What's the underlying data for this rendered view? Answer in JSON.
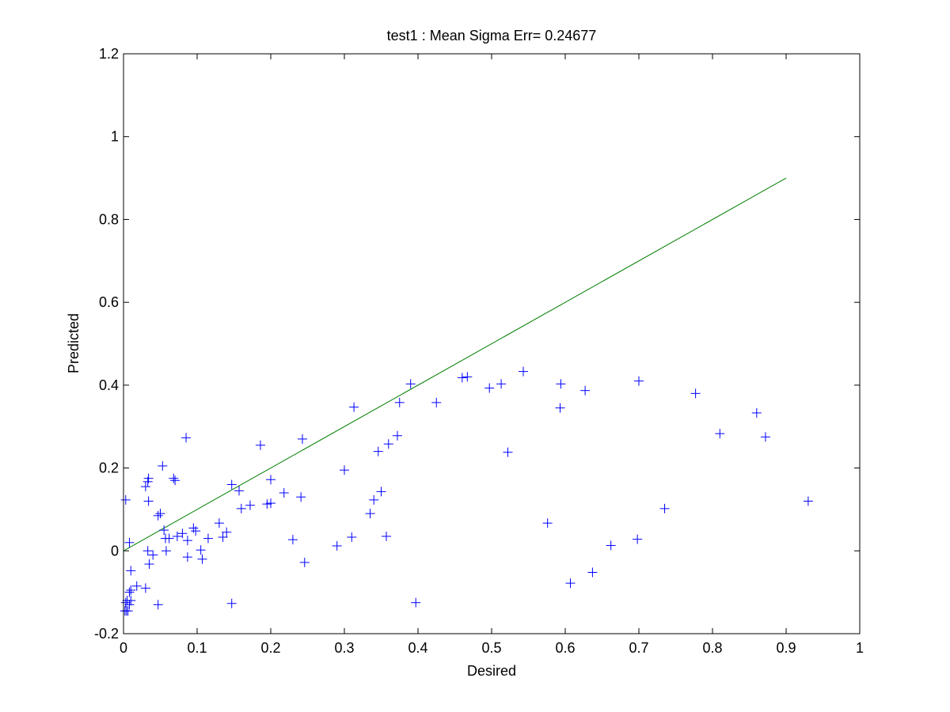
{
  "chart_data": {
    "type": "scatter",
    "title": "test1 :  Mean Sigma Err= 0.24677",
    "xlabel": "Desired",
    "ylabel": "Predicted",
    "xlim": [
      0,
      1
    ],
    "ylim": [
      -0.2,
      1.2
    ],
    "xticks": [
      "0",
      "0.1",
      "0.2",
      "0.3",
      "0.4",
      "0.5",
      "0.6",
      "0.7",
      "0.8",
      "0.9",
      "1"
    ],
    "yticks": [
      "-0.2",
      "0",
      "0.2",
      "0.4",
      "0.6",
      "0.8",
      "1",
      "1.2"
    ],
    "grid": false,
    "series": [
      {
        "type": "scatter",
        "marker": "+",
        "color": "#0000ff",
        "points": [
          [
            0.002,
            -0.145
          ],
          [
            0.004,
            -0.145
          ],
          [
            0.006,
            -0.145
          ],
          [
            0.003,
            -0.125
          ],
          [
            0.005,
            -0.12
          ],
          [
            0.008,
            -0.13
          ],
          [
            0.01,
            -0.12
          ],
          [
            0.008,
            -0.1
          ],
          [
            0.01,
            -0.095
          ],
          [
            0.018,
            -0.085
          ],
          [
            0.03,
            -0.09
          ],
          [
            0.047,
            -0.13
          ],
          [
            0.01,
            -0.048
          ],
          [
            0.003,
            0.123
          ],
          [
            0.008,
            0.02
          ],
          [
            0.03,
            0.155
          ],
          [
            0.033,
            0.167
          ],
          [
            0.034,
            0.175
          ],
          [
            0.034,
            0.12
          ],
          [
            0.033,
            0.0
          ],
          [
            0.035,
            -0.032
          ],
          [
            0.04,
            -0.01
          ],
          [
            0.047,
            0.085
          ],
          [
            0.05,
            0.09
          ],
          [
            0.053,
            0.205
          ],
          [
            0.055,
            0.05
          ],
          [
            0.057,
            0.03
          ],
          [
            0.058,
            0.0
          ],
          [
            0.062,
            0.03
          ],
          [
            0.068,
            0.175
          ],
          [
            0.07,
            0.17
          ],
          [
            0.073,
            0.035
          ],
          [
            0.08,
            0.042
          ],
          [
            0.085,
            0.273
          ],
          [
            0.087,
            0.025
          ],
          [
            0.087,
            -0.015
          ],
          [
            0.095,
            0.055
          ],
          [
            0.098,
            0.048
          ],
          [
            0.105,
            0.002
          ],
          [
            0.107,
            -0.02
          ],
          [
            0.115,
            0.03
          ],
          [
            0.13,
            0.067
          ],
          [
            0.135,
            0.033
          ],
          [
            0.14,
            0.045
          ],
          [
            0.147,
            0.16
          ],
          [
            0.147,
            -0.127
          ],
          [
            0.157,
            0.145
          ],
          [
            0.16,
            0.102
          ],
          [
            0.172,
            0.11
          ],
          [
            0.186,
            0.255
          ],
          [
            0.195,
            0.113
          ],
          [
            0.2,
            0.115
          ],
          [
            0.2,
            0.172
          ],
          [
            0.218,
            0.14
          ],
          [
            0.23,
            0.027
          ],
          [
            0.241,
            0.13
          ],
          [
            0.243,
            0.27
          ],
          [
            0.246,
            -0.028
          ],
          [
            0.29,
            0.012
          ],
          [
            0.3,
            0.195
          ],
          [
            0.31,
            0.033
          ],
          [
            0.313,
            0.347
          ],
          [
            0.335,
            0.09
          ],
          [
            0.34,
            0.123
          ],
          [
            0.346,
            0.24
          ],
          [
            0.35,
            0.143
          ],
          [
            0.357,
            0.035
          ],
          [
            0.36,
            0.258
          ],
          [
            0.372,
            0.278
          ],
          [
            0.375,
            0.358
          ],
          [
            0.39,
            0.403
          ],
          [
            0.397,
            -0.125
          ],
          [
            0.425,
            0.358
          ],
          [
            0.46,
            0.418
          ],
          [
            0.467,
            0.42
          ],
          [
            0.497,
            0.393
          ],
          [
            0.513,
            0.403
          ],
          [
            0.522,
            0.238
          ],
          [
            0.543,
            0.433
          ],
          [
            0.576,
            0.067
          ],
          [
            0.593,
            0.345
          ],
          [
            0.594,
            0.403
          ],
          [
            0.607,
            -0.078
          ],
          [
            0.627,
            0.387
          ],
          [
            0.637,
            -0.052
          ],
          [
            0.662,
            0.013
          ],
          [
            0.698,
            0.028
          ],
          [
            0.7,
            0.41
          ],
          [
            0.735,
            0.102
          ],
          [
            0.777,
            0.38
          ],
          [
            0.81,
            0.283
          ],
          [
            0.86,
            0.333
          ],
          [
            0.872,
            0.275
          ],
          [
            0.93,
            0.12
          ]
        ]
      },
      {
        "type": "line",
        "color": "#008000",
        "points": [
          [
            0,
            0
          ],
          [
            0.9,
            0.9
          ]
        ]
      }
    ]
  }
}
